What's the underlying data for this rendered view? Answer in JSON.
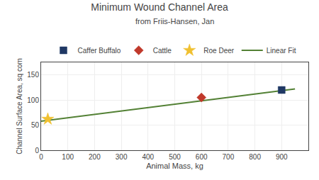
{
  "chart_data": {
    "type": "scatter",
    "title": "Minimum Wound Channel Area",
    "subtitle": "from Friis-Hansen, Jan",
    "xlabel": "Animal Mass, kg",
    "ylabel": "Channel Surface Area, sq com",
    "xlim": [
      0,
      1000
    ],
    "ylim": [
      0,
      175
    ],
    "xticks": [
      0,
      100,
      200,
      300,
      400,
      500,
      600,
      700,
      800,
      900
    ],
    "yticks": [
      0,
      50,
      100,
      150
    ],
    "grid": true,
    "legend": "top",
    "series": [
      {
        "name": "Caffer Buffalo",
        "type": "scatter",
        "color": "#1f3864",
        "marker": "square",
        "x": [
          900
        ],
        "values": [
          120
        ]
      },
      {
        "name": "Cattle",
        "type": "scatter",
        "color": "#c0392b",
        "marker": "diamond",
        "x": [
          600
        ],
        "values": [
          105
        ]
      },
      {
        "name": "Roe Deer",
        "type": "scatter",
        "color": "#f0c030",
        "marker": "star",
        "x": [
          25
        ],
        "values": [
          62
        ]
      },
      {
        "name": "Linear Fit",
        "type": "line",
        "color": "#538135",
        "x": [
          0,
          950
        ],
        "values": [
          58.0,
          122.0
        ]
      }
    ]
  }
}
